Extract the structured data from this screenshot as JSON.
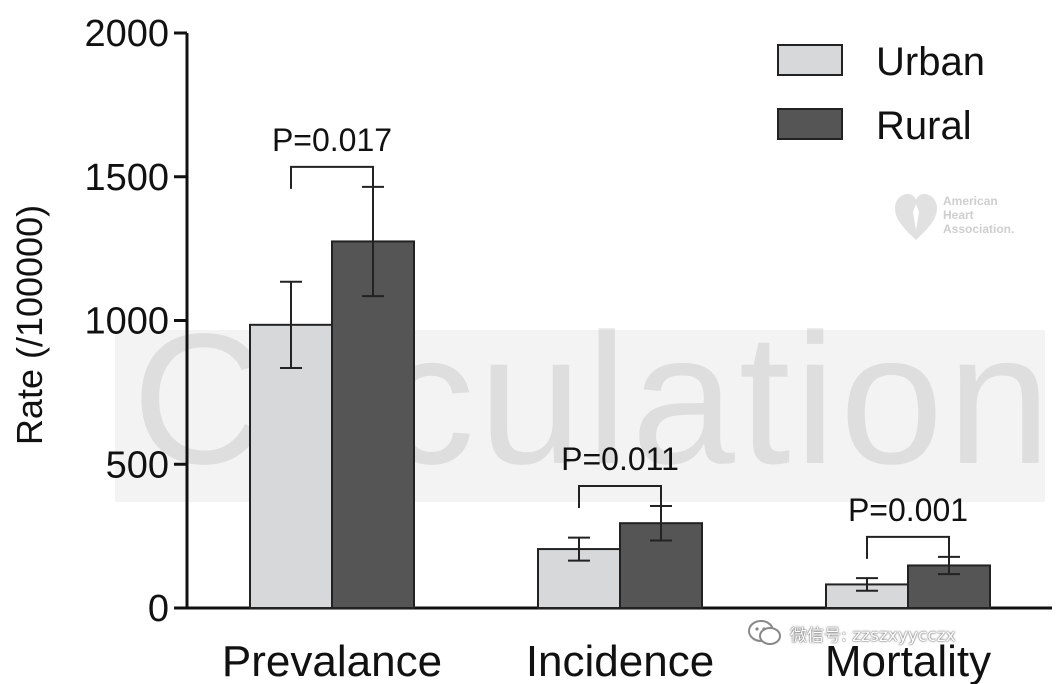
{
  "chart_data": {
    "type": "bar",
    "categories": [
      "Prevalance",
      "Incidence",
      "Mortality"
    ],
    "series": [
      {
        "name": "Urban",
        "values": [
          985,
          205,
          82
        ],
        "errors": [
          150,
          40,
          22
        ],
        "color": "#d6d8d9"
      },
      {
        "name": "Rural",
        "values": [
          1275,
          295,
          148
        ],
        "errors": [
          190,
          60,
          30
        ],
        "color": "#555555"
      }
    ],
    "ylabel": "Rate (/100000)",
    "xlabel": "",
    "ylim": [
      0,
      2000
    ],
    "yticks": [
      0,
      500,
      1000,
      1500,
      2000
    ],
    "ytick_labels": [
      "0",
      "500",
      "1000",
      "1500",
      "2000"
    ],
    "annotations": [
      {
        "category_index": 0,
        "text": "P=0.017"
      },
      {
        "category_index": 1,
        "text": "P=0.011"
      },
      {
        "category_index": 2,
        "text": "P=0.001"
      }
    ],
    "legend_position": "top-right",
    "grid": false
  },
  "watermarks": {
    "journal": "Circulation",
    "logo_line1": "American",
    "logo_line2": "Heart",
    "logo_line3": "Association.",
    "wechat_text": "微信号: zzszxyycczx"
  }
}
